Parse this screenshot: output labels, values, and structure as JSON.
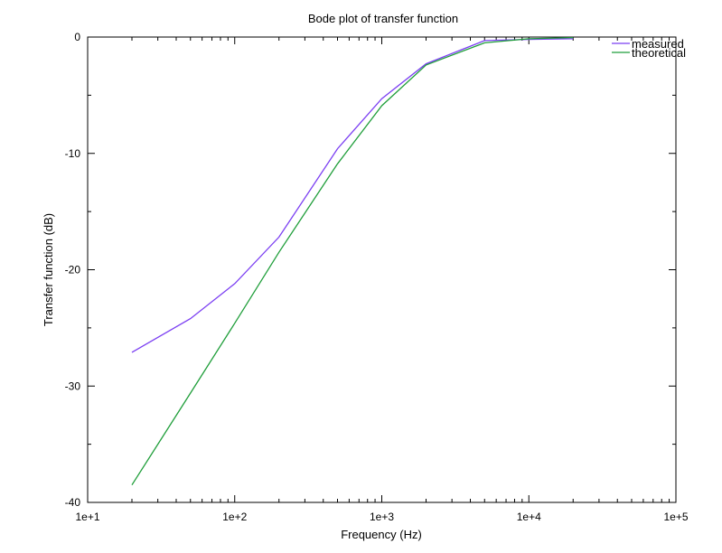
{
  "chart_data": {
    "type": "line",
    "title": "Bode plot of transfer function",
    "xlabel": "Frequency (Hz)",
    "ylabel": "Transfer function (dB)",
    "xscale": "log",
    "xlim": [
      10,
      100000
    ],
    "ylim": [
      -40,
      0
    ],
    "x_ticks": [
      10,
      100,
      1000,
      10000,
      100000
    ],
    "x_tick_labels": [
      "1e+1",
      "1e+2",
      "1e+3",
      "1e+4",
      "1e+5"
    ],
    "y_ticks": [
      0,
      -10,
      -20,
      -30,
      -40
    ],
    "y_tick_labels": [
      "0",
      "-10",
      "-20",
      "-30",
      "-40"
    ],
    "grid": false,
    "legend_position": "top-right",
    "series": [
      {
        "name": "measured",
        "color": "#7b3ff2",
        "x": [
          20,
          50,
          100,
          200,
          500,
          1000,
          2000,
          5000,
          10000,
          20000
        ],
        "y": [
          -27.1,
          -24.2,
          -21.2,
          -17.2,
          -9.6,
          -5.3,
          -2.3,
          -0.3,
          -0.2,
          -0.15
        ]
      },
      {
        "name": "theoretical",
        "color": "#1f9e3a",
        "x": [
          20,
          50,
          100,
          200,
          500,
          1000,
          2000,
          5000,
          10000,
          20000
        ],
        "y": [
          -38.5,
          -30.6,
          -24.6,
          -18.5,
          -10.9,
          -5.9,
          -2.4,
          -0.5,
          -0.15,
          -0.05
        ]
      }
    ]
  }
}
